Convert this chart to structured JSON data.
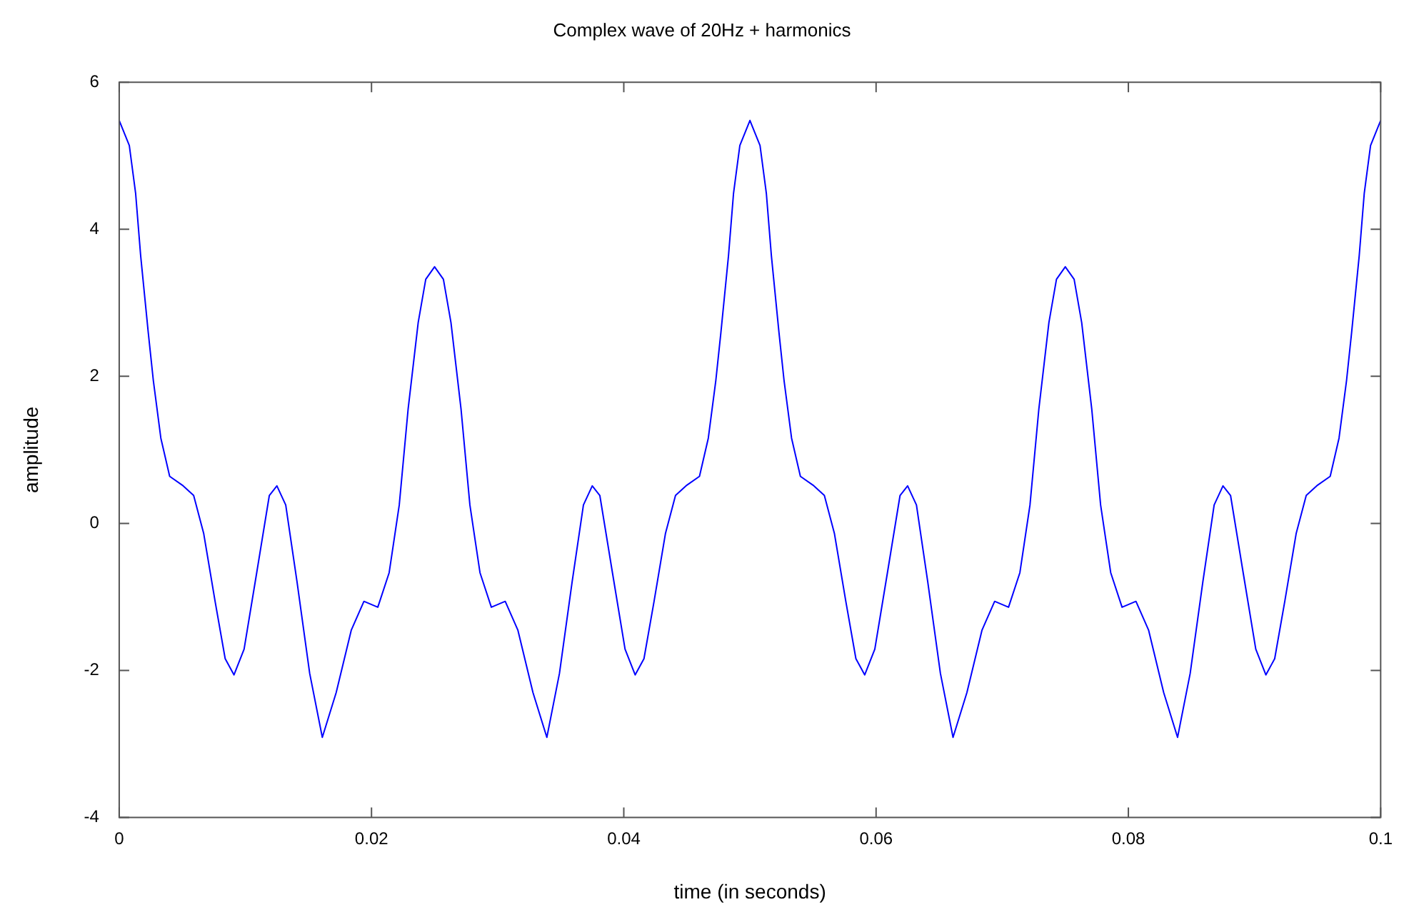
{
  "chart_data": {
    "type": "line",
    "title": "Complex wave of 20Hz + harmonics",
    "xlabel": "time (in seconds)",
    "ylabel": "amplitude",
    "x": [
      0,
      0.0008,
      0.0013,
      0.0017,
      0.0023,
      0.0027,
      0.0033,
      0.004,
      0.005,
      0.0059,
      0.0067,
      0.0076,
      0.0084,
      0.0091,
      0.0099,
      0.0109,
      0.0119,
      0.0125,
      0.0132,
      0.0141,
      0.0151,
      0.0161,
      0.0172,
      0.0184,
      0.0194,
      0.0205,
      0.0214,
      0.0222,
      0.0229,
      0.0237,
      0.0243,
      0.025,
      0.0257,
      0.0263,
      0.0271,
      0.0278,
      0.0286,
      0.0295,
      0.0306,
      0.0316,
      0.0328,
      0.0339,
      0.0349,
      0.0359,
      0.0368,
      0.0375,
      0.0381,
      0.0391,
      0.0401,
      0.0409,
      0.0416,
      0.0424,
      0.0433,
      0.0441,
      0.045,
      0.046,
      0.0467,
      0.0473,
      0.0477,
      0.0483,
      0.0487,
      0.0492,
      0.05,
      0.0508,
      0.0513,
      0.0517,
      0.0523,
      0.0527,
      0.0533,
      0.054,
      0.055,
      0.0559,
      0.0567,
      0.0576,
      0.0584,
      0.0591,
      0.0599,
      0.0609,
      0.0619,
      0.0625,
      0.0632,
      0.0641,
      0.0651,
      0.0661,
      0.0672,
      0.0684,
      0.0694,
      0.0705,
      0.0714,
      0.0722,
      0.0729,
      0.0737,
      0.0743,
      0.075,
      0.0757,
      0.0763,
      0.0771,
      0.0778,
      0.0786,
      0.0795,
      0.0806,
      0.0816,
      0.0828,
      0.0839,
      0.0849,
      0.0859,
      0.0868,
      0.0875,
      0.0881,
      0.0891,
      0.0901,
      0.0909,
      0.0916,
      0.0924,
      0.0933,
      0.0941,
      0.095,
      0.096,
      0.0967,
      0.0973,
      0.0977,
      0.0983,
      0.0987,
      0.0992,
      0.1
    ],
    "series": [
      {
        "color": "#0000ff",
        "values": [
          5.48,
          5.14,
          4.49,
          3.64,
          2.6,
          1.95,
          1.16,
          0.64,
          0.52,
          0.38,
          -0.14,
          -1.06,
          -1.84,
          -2.06,
          -1.71,
          -0.67,
          0.38,
          0.51,
          0.25,
          -0.8,
          -2.04,
          -2.91,
          -2.3,
          -1.45,
          -1.06,
          -1.14,
          -0.67,
          0.25,
          1.55,
          2.73,
          3.32,
          3.49,
          3.32,
          2.73,
          1.55,
          0.25,
          -0.67,
          -1.14,
          -1.06,
          -1.45,
          -2.3,
          -2.91,
          -2.04,
          -0.8,
          0.25,
          0.51,
          0.38,
          -0.67,
          -1.71,
          -2.06,
          -1.84,
          -1.06,
          -0.14,
          0.38,
          0.52,
          0.64,
          1.16,
          1.95,
          2.6,
          3.64,
          4.49,
          5.14,
          5.48,
          5.14,
          4.49,
          3.64,
          2.6,
          1.95,
          1.16,
          0.64,
          0.52,
          0.38,
          -0.14,
          -1.06,
          -1.84,
          -2.06,
          -1.71,
          -0.67,
          0.38,
          0.51,
          0.25,
          -0.8,
          -2.04,
          -2.91,
          -2.3,
          -1.45,
          -1.06,
          -1.14,
          -0.67,
          0.25,
          1.55,
          2.73,
          3.32,
          3.49,
          3.32,
          2.73,
          1.55,
          0.25,
          -0.67,
          -1.14,
          -1.06,
          -1.45,
          -2.3,
          -2.91,
          -2.04,
          -0.8,
          0.25,
          0.51,
          0.38,
          -0.67,
          -1.71,
          -2.06,
          -1.84,
          -1.06,
          -0.14,
          0.38,
          0.52,
          0.64,
          1.16,
          1.95,
          2.6,
          3.64,
          4.49,
          5.14,
          5.48
        ]
      }
    ],
    "xlim": [
      0,
      0.1
    ],
    "xticks": [
      0,
      0.02,
      0.04,
      0.06,
      0.08,
      0.1
    ],
    "ylim": [
      -4,
      6
    ],
    "yticks": [
      -4,
      -2,
      0,
      2,
      4,
      6
    ],
    "marker": "none",
    "line_style": "solid"
  }
}
